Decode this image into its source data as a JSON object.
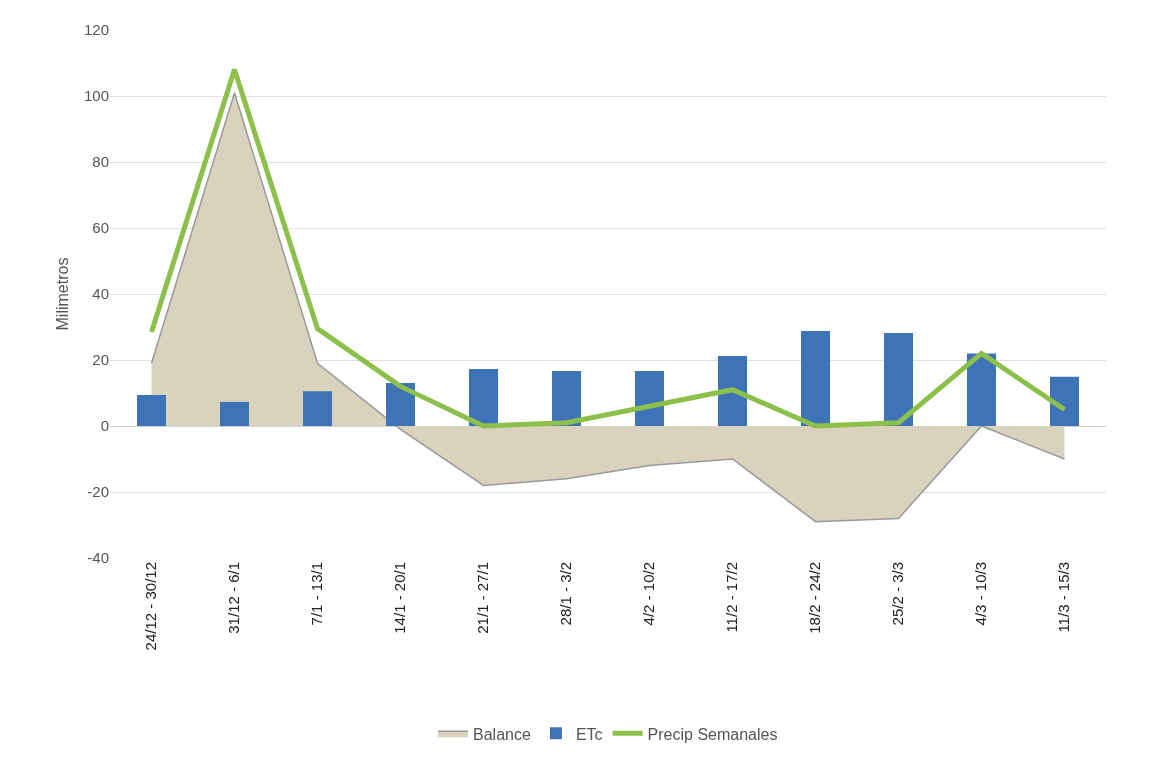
{
  "chart_data": {
    "type": "bar",
    "ylabel": "Milimetros",
    "categories": [
      "24/12 - 30/12",
      "31/12 - 6/1",
      "7/1 - 13/1",
      "14/1 - 20/1",
      "21/1 - 27/1",
      "28/1 - 3/2",
      "4/2 - 10/2",
      "11/2 - 17/2",
      "18/2 - 24/2",
      "25/2 - 3/3",
      "4/3 - 10/3",
      "11/3 - 15/3"
    ],
    "series": [
      {
        "name": "Balance",
        "type": "area",
        "color": "#d9d2bd",
        "values": [
          19,
          101,
          19,
          -1,
          -18,
          -16,
          -12,
          -10,
          -29,
          -28,
          0,
          -10
        ]
      },
      {
        "name": "ETc",
        "color": "#3f73b8",
        "values": [
          9.4,
          7.3,
          10.5,
          13,
          17.3,
          16.7,
          16.7,
          21.2,
          28.8,
          28.2,
          22,
          14.9
        ]
      },
      {
        "name": "Precip Semanales",
        "type": "line",
        "color": "#8cc04b",
        "values": [
          28.5,
          108,
          29.5,
          12,
          0,
          1,
          6,
          11,
          0,
          1,
          22,
          5
        ]
      }
    ],
    "ylim": [
      -40,
      120
    ],
    "yticks": [
      -40,
      -20,
      0,
      20,
      40,
      60,
      80,
      100,
      120
    ],
    "grid": "y",
    "legend": "bottom",
    "marker": "none",
    "line_style": "solid"
  }
}
